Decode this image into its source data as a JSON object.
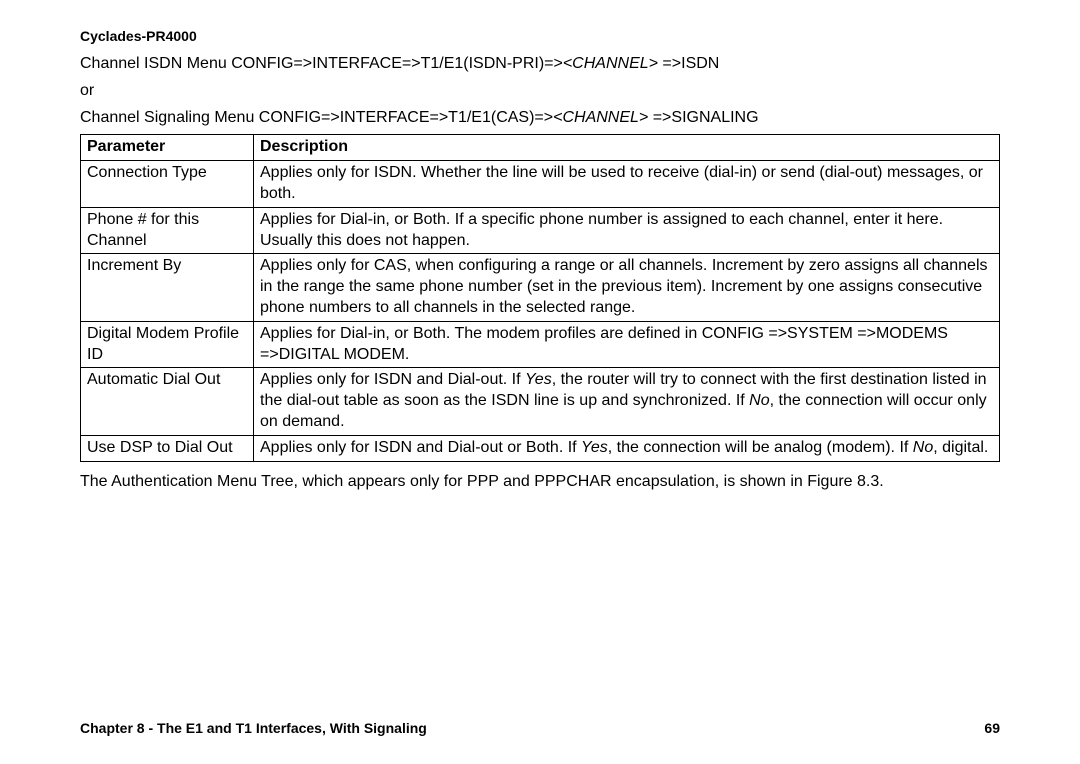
{
  "header": {
    "title": "Cyclades-PR4000"
  },
  "menu": {
    "line1_pre": "Channel ISDN Menu   CONFIG=>INTERFACE=>T1/E1(ISDN-PRI)=>",
    "line1_italic": "<CHANNEL>",
    "line1_post": " =>ISDN",
    "or": "or",
    "line2_pre": "Channel Signaling Menu CONFIG=>INTERFACE=>T1/E1(CAS)=>",
    "line2_italic": "<CHANNEL>",
    "line2_post": " =>SIGNALING"
  },
  "table": {
    "header_param": "Parameter",
    "header_desc": "Description",
    "rows": [
      {
        "param": "Connection Type",
        "desc": "Applies only for ISDN.  Whether the line will be used to receive (dial-in) or send (dial-out) messages, or both."
      },
      {
        "param": "Phone # for this Channel",
        "desc": "Applies for Dial-in, or Both.  If a specific phone number is assigned to each channel, enter it here.  Usually this does not happen."
      },
      {
        "param": "Increment By",
        "desc": "Applies only for CAS, when configuring a range or all channels.  Increment by zero assigns all channels in the range the same phone number (set in the previous item).  Increment by one assigns consecutive phone numbers to all channels in the selected range."
      },
      {
        "param": "Digital Modem Profile ID",
        "desc": "Applies for Dial-in, or Both.  The modem profiles are defined in CONFIG =>SYSTEM =>MODEMS =>DIGITAL MODEM."
      }
    ],
    "row5": {
      "param": "Automatic Dial Out",
      "desc_a": "Applies only for ISDN and Dial-out. If ",
      "desc_yes": "Yes",
      "desc_b": ", the router will try to connect with the first destination listed in the dial-out table as soon as the ISDN line is up and synchronized.  If ",
      "desc_no": "No",
      "desc_c": ", the connection will occur only on demand."
    },
    "row6": {
      "param": "Use DSP to Dial Out",
      "desc_a": "Applies only for ISDN and Dial-out or Both.  If ",
      "desc_yes": "Yes",
      "desc_b": ", the connection will be analog (modem).  If ",
      "desc_no": "No",
      "desc_c": ", digital."
    }
  },
  "after": "The Authentication Menu Tree, which appears only for PPP and PPPCHAR encapsulation, is shown in Figure 8.3.",
  "footer": {
    "chapter": "Chapter 8 - The E1 and T1 Interfaces, With Signaling",
    "page": "69"
  }
}
